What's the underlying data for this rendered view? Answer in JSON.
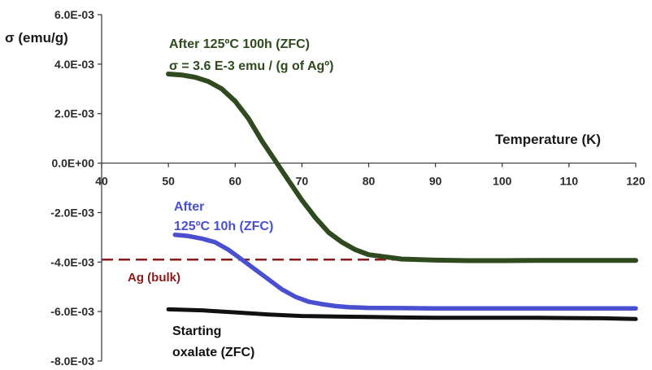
{
  "chart_data": {
    "type": "line",
    "ylabel": "σ (emu/g)",
    "xlabel": "Temperature (K)",
    "xlim": [
      40,
      120
    ],
    "ylim": [
      -0.008,
      0.006
    ],
    "x_ticks": [
      "40",
      "50",
      "60",
      "70",
      "80",
      "90",
      "100",
      "110",
      "120"
    ],
    "x_tick_values": [
      40,
      50,
      60,
      70,
      80,
      90,
      100,
      110,
      120
    ],
    "y_ticks": [
      "6.0E-03",
      "4.0E-03",
      "2.0E-03",
      "0.0E+00",
      "-2.0E-03",
      "-4.0E-03",
      "-6.0E-03",
      "-8.0E-03"
    ],
    "y_tick_values": [
      0.006,
      0.004,
      0.002,
      0.0,
      -0.002,
      -0.004,
      -0.006,
      -0.008
    ],
    "grid": false,
    "series": [
      {
        "name": "After 125ºC 100h (ZFC)",
        "color": "#2e4a1e",
        "x": [
          50,
          52,
          54,
          56,
          58,
          60,
          62,
          64,
          66,
          68,
          70,
          72,
          74,
          76,
          78,
          80,
          85,
          90,
          95,
          100,
          105,
          110,
          115,
          120
        ],
        "y": [
          0.0036,
          0.00356,
          0.00347,
          0.0033,
          0.003,
          0.0025,
          0.0018,
          0.0009,
          0.0001,
          -0.0007,
          -0.0015,
          -0.0022,
          -0.0028,
          -0.0032,
          -0.0035,
          -0.0037,
          -0.00388,
          -0.00392,
          -0.00394,
          -0.00394,
          -0.00393,
          -0.00393,
          -0.00393,
          -0.00393
        ]
      },
      {
        "name": "After 125ºC 10h (ZFC)",
        "color": "#4a4fd0",
        "x": [
          51,
          53,
          55,
          57,
          59,
          61,
          63,
          65,
          67,
          69,
          71,
          73,
          75,
          77,
          80,
          85,
          90,
          95,
          100,
          105,
          110,
          115,
          120
        ],
        "y": [
          -0.0029,
          -0.00295,
          -0.00305,
          -0.0032,
          -0.0035,
          -0.0039,
          -0.0043,
          -0.0047,
          -0.0051,
          -0.0054,
          -0.0056,
          -0.0057,
          -0.00578,
          -0.00582,
          -0.00585,
          -0.00586,
          -0.00587,
          -0.00587,
          -0.00587,
          -0.00587,
          -0.00587,
          -0.00587,
          -0.00587
        ]
      },
      {
        "name": "Starting oxalate (ZFC)",
        "color": "#111111",
        "x": [
          50,
          55,
          60,
          65,
          70,
          75,
          80,
          85,
          90,
          95,
          100,
          105,
          110,
          115,
          120
        ],
        "y": [
          -0.00591,
          -0.00595,
          -0.00603,
          -0.00612,
          -0.00618,
          -0.0062,
          -0.00622,
          -0.00624,
          -0.00625,
          -0.00625,
          -0.00625,
          -0.00625,
          -0.00626,
          -0.00627,
          -0.0063
        ]
      }
    ],
    "reference_line": {
      "name": "Ag (bulk)",
      "y": -0.0039,
      "x_range": [
        40,
        120
      ],
      "color": "#8b1a1a",
      "style": "dashed"
    },
    "annotations": [
      {
        "id": "ann-100h-line1",
        "text": "After 125ºC 100h (ZFC)",
        "color": "#2e4a1e"
      },
      {
        "id": "ann-100h-line2",
        "text": "σ = 3.6 E-3 emu / (g of Agº)",
        "color": "#2e4a1e"
      },
      {
        "id": "ann-10h-line1",
        "text": "After",
        "color": "#4a4fd0"
      },
      {
        "id": "ann-10h-line2",
        "text": "125ºC 10h (ZFC)",
        "color": "#4a4fd0"
      },
      {
        "id": "ann-ag",
        "text": "Ag (bulk)",
        "color": "#8b1a1a"
      },
      {
        "id": "ann-ox-line1",
        "text": "Starting",
        "color": "#111111"
      },
      {
        "id": "ann-ox-line2",
        "text": "oxalate (ZFC)",
        "color": "#111111"
      }
    ]
  }
}
